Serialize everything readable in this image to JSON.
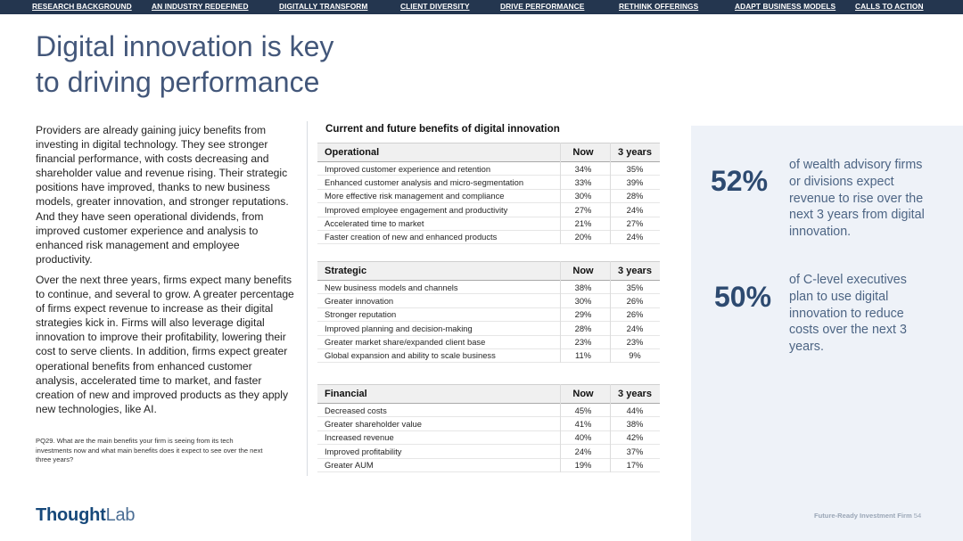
{
  "nav": [
    {
      "label": "RESEARCH BACKGROUND"
    },
    {
      "label": "AN INDUSTRY REDEFINED"
    },
    {
      "label": "DIGITALLY TRANSFORM"
    },
    {
      "label": "CLIENT DIVERSITY"
    },
    {
      "label": "DRIVE PERFORMANCE"
    },
    {
      "label": "RETHINK OFFERINGS"
    },
    {
      "label": "ADAPT BUSINESS MODELS"
    },
    {
      "label": "CALLS TO ACTION"
    }
  ],
  "title": {
    "line1": "Digital innovation is key",
    "line2": "to driving  performance"
  },
  "body": {
    "para1": "Providers are already gaining juicy benefits from investing in digital technology. They see stronger financial performance, with costs decreasing and shareholder value and revenue rising. Their strategic positions have improved, thanks to new business models, greater innovation, and stronger reputations. And they have seen operational dividends, from improved customer experience and analysis to enhanced risk management and employee productivity.",
    "para2": "Over the next three years, firms expect many benefits to continue, and several to grow. A greater percentage of firms expect revenue to increase as their digital strategies kick in. Firms will also leverage digital innovation to improve their profitability, lowering their cost to serve clients.  In addition, firms expect greater operational benefits from enhanced customer analysis, accelerated time to market, and faster creation of new and improved products as they apply new technologies, like AI."
  },
  "footnote": "PQ29. What are the main benefits your firm is seeing from its tech investments now and what main benefits does it expect to see over the next three years?",
  "logo": {
    "thought": "Thought",
    "lab": "Lab"
  },
  "table": {
    "title": "Current and future benefits of digital innovation",
    "col_now": "Now",
    "col_3y": "3 years",
    "sections": [
      {
        "name": "Operational",
        "rows": [
          {
            "label": "Improved customer experience and retention",
            "now": "34%",
            "y3": "35%"
          },
          {
            "label": "Enhanced customer analysis and micro-segmentation",
            "now": "33%",
            "y3": "39%"
          },
          {
            "label": "More effective risk management and compliance",
            "now": "30%",
            "y3": "28%"
          },
          {
            "label": "Improved employee engagement and productivity",
            "now": "27%",
            "y3": "24%"
          },
          {
            "label": "Accelerated time to market",
            "now": "21%",
            "y3": "27%"
          },
          {
            "label": "Faster creation of new and enhanced products",
            "now": "20%",
            "y3": "24%"
          }
        ]
      },
      {
        "name": "Strategic",
        "rows": [
          {
            "label": "New business models and channels",
            "now": "38%",
            "y3": "35%"
          },
          {
            "label": "Greater innovation",
            "now": "30%",
            "y3": "26%"
          },
          {
            "label": "Stronger reputation",
            "now": "29%",
            "y3": "26%"
          },
          {
            "label": "Improved planning and decision-making",
            "now": "28%",
            "y3": "24%"
          },
          {
            "label": "Greater market share/expanded client base",
            "now": "23%",
            "y3": "23%"
          },
          {
            "label": "Global expansion and ability to scale business",
            "now": "11%",
            "y3": "9%"
          }
        ]
      },
      {
        "name": "Financial",
        "rows": [
          {
            "label": "Decreased costs",
            "now": "45%",
            "y3": "44%"
          },
          {
            "label": "Greater shareholder value",
            "now": "41%",
            "y3": "38%"
          },
          {
            "label": "Increased revenue",
            "now": "40%",
            "y3": "42%"
          },
          {
            "label": "Improved profitability",
            "now": "24%",
            "y3": "37%"
          },
          {
            "label": "Greater AUM",
            "now": "19%",
            "y3": "17%"
          }
        ]
      }
    ]
  },
  "stats": [
    {
      "value": "52%",
      "text": "of wealth advisory firms or divisions expect revenue to rise over the next 3 years from digital innovation."
    },
    {
      "value": "50%",
      "text": "of C-level executives plan to use digital innovation to reduce costs over the next 3 years."
    }
  ],
  "footer": {
    "label": "Future-Ready Investment Firm",
    "page": "54"
  }
}
